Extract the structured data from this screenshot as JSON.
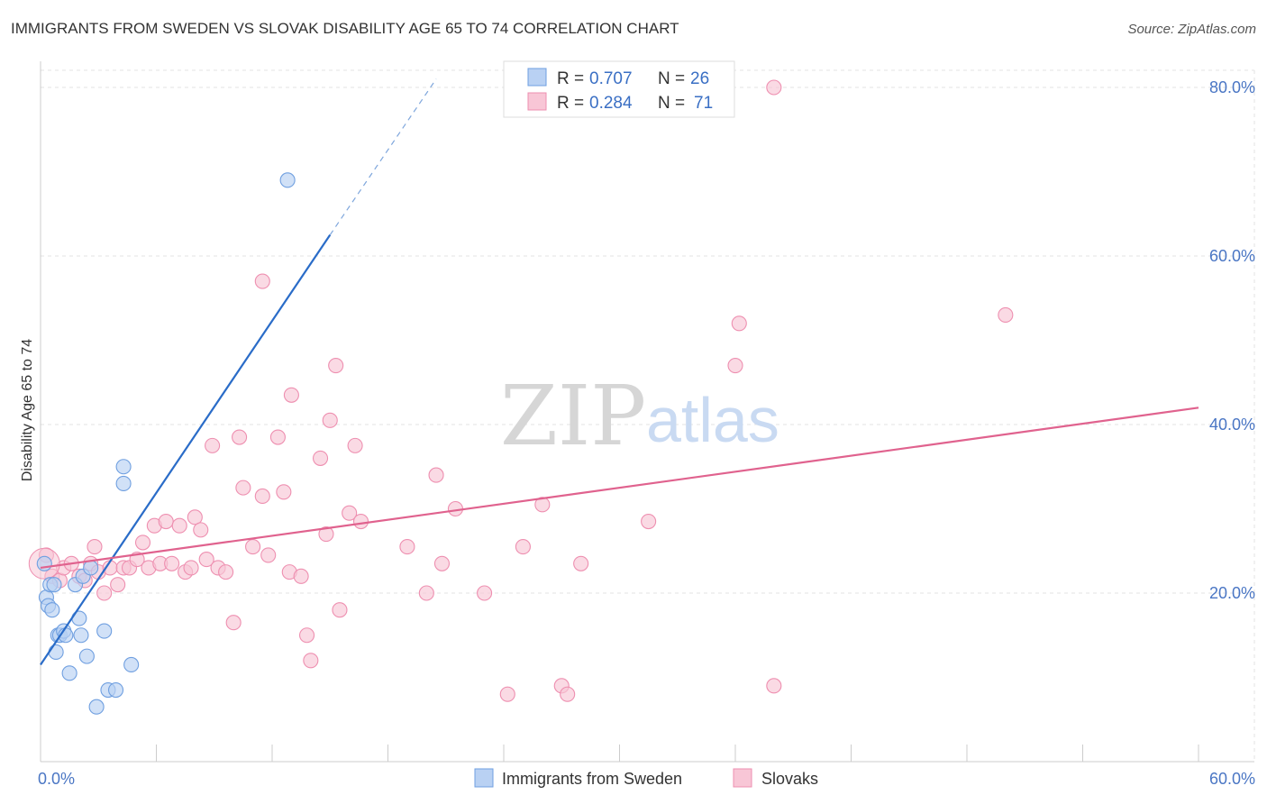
{
  "title": "IMMIGRANTS FROM SWEDEN VS SLOVAK DISABILITY AGE 65 TO 74 CORRELATION CHART",
  "source": "Source: ZipAtlas.com",
  "watermark": {
    "zip": "ZIP",
    "atlas": "atlas"
  },
  "legend": {
    "r_label": "R =",
    "n_label": "N =",
    "rows": [
      {
        "r": "0.707",
        "n": "26",
        "color": "#9dbfee"
      },
      {
        "r": "0.284",
        "n": "71",
        "color": "#f5b3c8"
      }
    ]
  },
  "bottom_legend": [
    "Immigrants from Sweden",
    "Slovaks"
  ],
  "chart_data": {
    "type": "scatter",
    "title": "IMMIGRANTS FROM SWEDEN VS SLOVAK DISABILITY AGE 65 TO 74 CORRELATION CHART",
    "xlabel": "",
    "ylabel": "Disability Age 65 to 74",
    "xlim": [
      0,
      60
    ],
    "ylim": [
      0,
      82
    ],
    "x_tick_labels": [
      "0.0%",
      "60.0%"
    ],
    "y_ticks": [
      20,
      40,
      60,
      80
    ],
    "y_tick_labels": [
      "20.0%",
      "40.0%",
      "60.0%",
      "80.0%"
    ],
    "grid": true,
    "legend_position": "top-center",
    "series": [
      {
        "name": "Immigrants from Sweden",
        "color": "#6f9fe0",
        "fill": "#b9d1f3",
        "trend": {
          "x0": 0,
          "y0": 11.5,
          "x1": 15,
          "y1": 62.5,
          "dash_to_x": 20.5,
          "dash_to_y": 81
        },
        "points": [
          [
            0.2,
            23.5
          ],
          [
            0.3,
            19.5
          ],
          [
            0.4,
            18.5
          ],
          [
            0.5,
            21.0
          ],
          [
            0.6,
            18.0
          ],
          [
            0.7,
            21.0
          ],
          [
            0.8,
            13.0
          ],
          [
            0.9,
            15.0
          ],
          [
            1.0,
            15.0
          ],
          [
            1.2,
            15.5
          ],
          [
            1.3,
            15.0
          ],
          [
            1.5,
            10.5
          ],
          [
            1.8,
            21.0
          ],
          [
            2.1,
            15.0
          ],
          [
            2.0,
            17.0
          ],
          [
            2.2,
            22.0
          ],
          [
            2.4,
            12.5
          ],
          [
            2.6,
            23.0
          ],
          [
            2.9,
            6.5
          ],
          [
            3.3,
            15.5
          ],
          [
            3.5,
            8.5
          ],
          [
            3.9,
            8.5
          ],
          [
            4.3,
            33.0
          ],
          [
            4.3,
            35.0
          ],
          [
            4.7,
            11.5
          ],
          [
            12.8,
            69.0
          ]
        ]
      },
      {
        "name": "Slovaks",
        "color": "#ee8fb0",
        "fill": "#f8c6d6",
        "trend": {
          "x0": 0,
          "y0": 23.0,
          "x1": 60,
          "y1": 42.0
        },
        "points": [
          [
            0.3,
            24.5
          ],
          [
            0.6,
            22.0
          ],
          [
            1.0,
            21.5
          ],
          [
            1.2,
            23.0
          ],
          [
            1.6,
            23.5
          ],
          [
            2.0,
            22.0
          ],
          [
            2.3,
            21.5
          ],
          [
            2.6,
            23.5
          ],
          [
            2.8,
            25.5
          ],
          [
            3.0,
            22.5
          ],
          [
            3.3,
            20.0
          ],
          [
            3.6,
            23.0
          ],
          [
            4.0,
            21.0
          ],
          [
            4.3,
            23.0
          ],
          [
            4.6,
            23.0
          ],
          [
            5.0,
            24.0
          ],
          [
            5.3,
            26.0
          ],
          [
            5.6,
            23.0
          ],
          [
            5.9,
            28.0
          ],
          [
            6.2,
            23.5
          ],
          [
            6.5,
            28.5
          ],
          [
            6.8,
            23.5
          ],
          [
            7.2,
            28.0
          ],
          [
            7.5,
            22.5
          ],
          [
            7.8,
            23.0
          ],
          [
            8.0,
            29.0
          ],
          [
            8.3,
            27.5
          ],
          [
            8.6,
            24.0
          ],
          [
            8.9,
            37.5
          ],
          [
            9.2,
            23.0
          ],
          [
            9.6,
            22.5
          ],
          [
            10.0,
            16.5
          ],
          [
            10.3,
            38.5
          ],
          [
            10.5,
            32.5
          ],
          [
            11.0,
            25.5
          ],
          [
            11.5,
            31.5
          ],
          [
            11.8,
            24.5
          ],
          [
            12.3,
            38.5
          ],
          [
            12.6,
            32.0
          ],
          [
            12.9,
            22.5
          ],
          [
            13.0,
            43.5
          ],
          [
            13.8,
            15.0
          ],
          [
            14.0,
            12.0
          ],
          [
            14.5,
            36.0
          ],
          [
            14.8,
            27.0
          ],
          [
            15.0,
            40.5
          ],
          [
            15.3,
            47.0
          ],
          [
            15.5,
            18.0
          ],
          [
            16.0,
            29.5
          ],
          [
            16.3,
            37.5
          ],
          [
            16.6,
            28.5
          ],
          [
            11.5,
            57.0
          ],
          [
            19.0,
            25.5
          ],
          [
            20.0,
            20.0
          ],
          [
            20.5,
            34.0
          ],
          [
            20.8,
            23.5
          ],
          [
            21.5,
            30.0
          ],
          [
            23.0,
            20.0
          ],
          [
            24.2,
            8.0
          ],
          [
            26.0,
            30.5
          ],
          [
            27.0,
            9.0
          ],
          [
            27.3,
            8.0
          ],
          [
            28.0,
            23.5
          ],
          [
            31.5,
            28.5
          ],
          [
            36.0,
            47.0
          ],
          [
            38.0,
            9.0
          ],
          [
            36.2,
            52.0
          ],
          [
            38.0,
            80.0
          ],
          [
            50.0,
            53.0
          ],
          [
            25.0,
            25.5
          ],
          [
            13.5,
            22.0
          ]
        ]
      }
    ]
  }
}
